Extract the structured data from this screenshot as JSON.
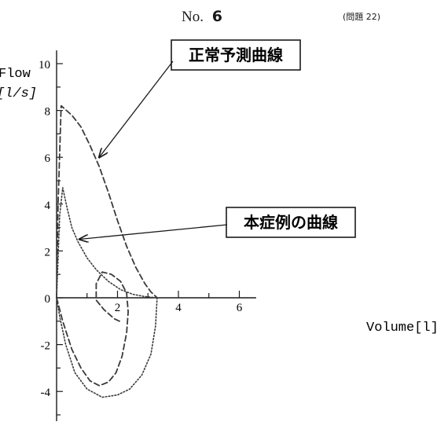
{
  "header": {
    "page_label": "No.",
    "page_number": "6",
    "question_ref": "(問題 22)"
  },
  "chart_data": {
    "type": "line",
    "title": "",
    "xlabel": "Volume[l]",
    "ylabel": "Flow[l/s]",
    "xlim": [
      0,
      6.5
    ],
    "ylim": [
      -5,
      10.5
    ],
    "x_ticks": [
      2,
      4,
      6
    ],
    "y_ticks": [
      10,
      8,
      6,
      4,
      2,
      0,
      -2,
      -4
    ],
    "grid": false,
    "annotations": [
      {
        "name": "normal-curve-callout",
        "text": "正常予測曲線",
        "target": [
          1.4,
          6.0
        ]
      },
      {
        "name": "patient-curve-callout",
        "text": "本症例の曲線",
        "target": [
          0.75,
          2.5
        ]
      }
    ],
    "series": [
      {
        "id": "normal",
        "line_style": "dashed",
        "points": [
          [
            0,
            0
          ],
          [
            0.05,
            4.0
          ],
          [
            0.15,
            8.2
          ],
          [
            0.5,
            7.8
          ],
          [
            0.8,
            7.3
          ],
          [
            1.1,
            6.5
          ],
          [
            1.4,
            5.6
          ],
          [
            1.7,
            4.5
          ],
          [
            2.0,
            3.3
          ],
          [
            2.3,
            2.2
          ],
          [
            2.6,
            1.3
          ],
          [
            2.9,
            0.6
          ],
          [
            3.1,
            0.25
          ],
          [
            3.3,
            0
          ]
        ]
      },
      {
        "id": "patient-expiratory",
        "line_style": "dotted",
        "points": [
          [
            0,
            0
          ],
          [
            0.1,
            3.5
          ],
          [
            0.2,
            4.7
          ],
          [
            0.35,
            3.8
          ],
          [
            0.5,
            3.0
          ],
          [
            0.7,
            2.4
          ],
          [
            1.0,
            1.7
          ],
          [
            1.3,
            1.2
          ],
          [
            1.7,
            0.7
          ],
          [
            2.1,
            0.35
          ],
          [
            2.5,
            0.15
          ],
          [
            2.9,
            0.05
          ],
          [
            3.3,
            0
          ]
        ]
      },
      {
        "id": "patient-inspiratory",
        "line_style": "dotted",
        "points": [
          [
            3.3,
            0
          ],
          [
            3.25,
            -1.2
          ],
          [
            3.1,
            -2.4
          ],
          [
            2.8,
            -3.3
          ],
          [
            2.4,
            -3.9
          ],
          [
            2.0,
            -4.15
          ],
          [
            1.5,
            -4.25
          ],
          [
            1.0,
            -3.9
          ],
          [
            0.6,
            -3.2
          ],
          [
            0.3,
            -2.0
          ],
          [
            0.1,
            -0.8
          ],
          [
            0,
            0
          ]
        ]
      },
      {
        "id": "normal-inspiratory",
        "line_style": "dashed",
        "points": [
          [
            0,
            0
          ],
          [
            0.2,
            -1.0
          ],
          [
            0.5,
            -2.2
          ],
          [
            0.8,
            -3.0
          ],
          [
            1.1,
            -3.55
          ],
          [
            1.4,
            -3.75
          ],
          [
            1.7,
            -3.6
          ],
          [
            1.95,
            -3.2
          ],
          [
            2.15,
            -2.5
          ],
          [
            2.3,
            -1.5
          ],
          [
            2.35,
            -0.6
          ],
          [
            2.3,
            0.2
          ],
          [
            2.1,
            0.7
          ],
          [
            1.8,
            1.0
          ],
          [
            1.5,
            1.1
          ],
          [
            1.3,
            0.6
          ],
          [
            1.3,
            -0.1
          ],
          [
            1.55,
            -0.5
          ],
          [
            1.9,
            -0.9
          ],
          [
            2.15,
            -1.05
          ]
        ]
      }
    ]
  }
}
